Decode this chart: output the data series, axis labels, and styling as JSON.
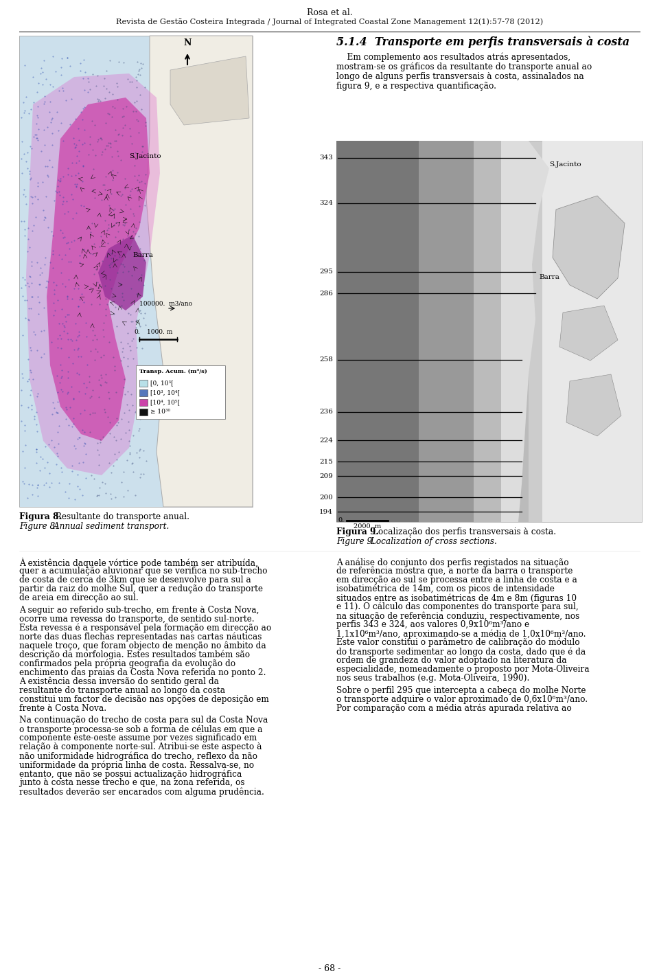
{
  "header_line1": "Rosa et al.",
  "header_line2": "Revista de Gestão Costeira Integrada / Journal of Integrated Coastal Zone Management 12(1):57-78 (2012)",
  "footer": "- 68 -",
  "section_title": "5.1.4  Transporte em perfis transversais à costa",
  "section_para": "Em complemento aos resultados atrás apresentados, mostram-se os gráficos da resultante do transporte anual ao longo de alguns perfis transversais à costa, assinalados na figura 9, e a respectiva quantificação.",
  "fig8_bold": "Figura 8.",
  "fig8_normal": " Resultante do transporte anual.",
  "fig8_italic": "Figure 8.",
  "fig8_italic2": " Annual sediment transport.",
  "fig9_bold": "Figura 9.",
  "fig9_normal": " Localização dos perfis transversais à costa.",
  "fig9_italic": "Figure 9.",
  "fig9_italic2": " Localization of cross sections.",
  "legend_title": "Transp. Acum. (m³/s)",
  "legend_labels": [
    "[0, 10³[",
    "[10³, 10⁴[",
    "[10⁴, 10⁵[",
    "≥ 10³⁰"
  ],
  "legend_colors": [
    "#b8e0e8",
    "#5577bb",
    "#cc44aa",
    "#111111"
  ],
  "profile_numbers": [
    343,
    324,
    295,
    286,
    258,
    236,
    224,
    215,
    209,
    200,
    194
  ],
  "left_para1": "À existência daquele vórtice pode também ser atribuída, quer a acumulação aluvionar que se verifica no sub-trecho de costa de cerca de 3km que se desenvolve para sul a partir da raiz do molhe Sul, quer a redução do transporte de areia em direcção ao sul.",
  "left_para2": "   A seguir ao referido sub-trecho, em frente à Costa Nova, ocorre uma revessa do transporte, de sentido sul-norte. Esta revessa é a responsável pela formação em direcção ao norte das duas flechas representadas nas cartas náuticas naquele troço, que foram objecto de menção no âmbito da descrição da morfologia. Estes resultados também são confirmados pela própria geografia da evolução do enchimento das praias da Costa Nova referida no ponto 2. A existência dessa inversão do sentido geral da resultante do transporte anual ao longo da costa constitui um factor de decisão nas opções de deposição em frente à Costa Nova.",
  "left_para3": "   Na continuação do trecho de costa para sul da Costa Nova o transporte processa-se sob a forma de células em que a componente este-oeste assume por vezes significado em relação à componente norte-sul. Atribui-se este aspecto à não uniformidade hidrográfica do trecho, reflexo da não uniformidade da própria linha de costa. Ressalva-se, no entanto, que não se possui actualização hidrográfica junto à costa nesse trecho e que, na zona referida, os resultados deverão ser encarados com alguma prudência.",
  "right_para1": "   A análise do conjunto dos perfis registados na situação de referência mostra que, a norte da barra o transporte em direcção ao sul se processa entre a linha de costa e a isobatimétrica de 14m, com os picos de intensidade situados entre as isobatimétricas de 4m e 8m (figuras 10 e 11). O cálculo das componentes do transporte para sul, na situação de referência conduziu, respectivamente, nos perfis 343 e 324, aos valores 0,9x10⁶m³/ano e 1,1x10⁶m³/ano, aproximando-se a média de 1,0x10⁶m³/ano. Este valor constitui o parâmetro de calibração do módulo do transporte sedimentar ao longo da costa, dado que é da ordem de grandeza do valor adoptado na literatura da especialidade, nomeadamente o proposto por Mota-Oliveira nos seus trabalhos (e.g. Mota-Oliveira, 1990).",
  "right_para2": "   Sobre o perfil 295 que intercepta a cabeça do molhe Norte o transporte adquire o valor aproximado de 0,6x10⁶m³/ano. Por comparação com a média atrás apurada relativa ao",
  "bg": "#ffffff"
}
